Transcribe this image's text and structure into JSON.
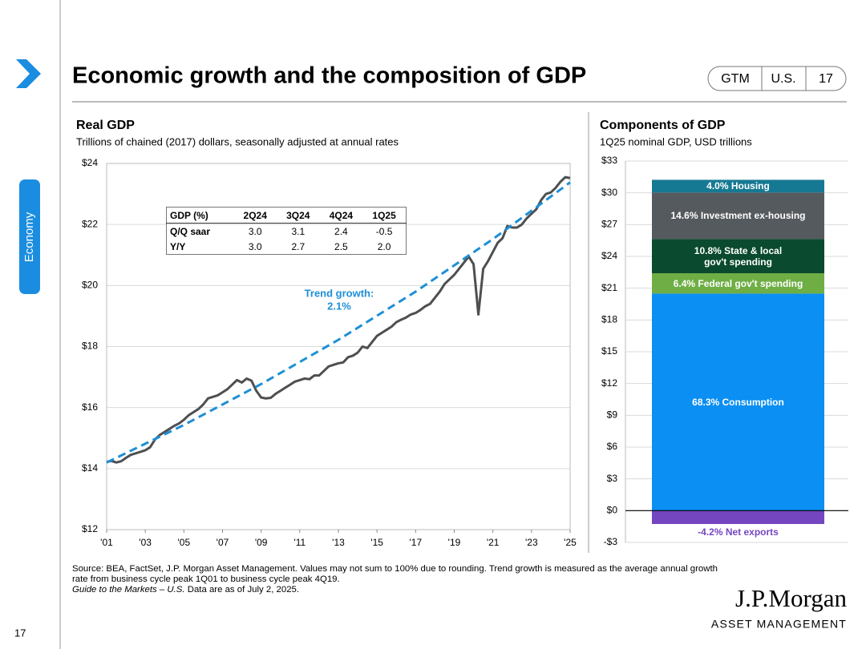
{
  "header": {
    "title": "Economic growth and the composition of GDP",
    "tags": [
      "GTM",
      "U.S.",
      "17"
    ]
  },
  "sidebar": {
    "section": "Economy",
    "page": "17"
  },
  "chart_data": [
    {
      "type": "line",
      "title": "Real GDP",
      "subtitle": "Trillions of chained (2017) dollars, seasonally adjusted at annual rates",
      "x": [
        2001,
        2001.25,
        2001.5,
        2001.75,
        2002,
        2002.25,
        2002.5,
        2002.75,
        2003,
        2003.25,
        2003.5,
        2003.75,
        2004,
        2004.25,
        2004.5,
        2004.75,
        2005,
        2005.25,
        2005.5,
        2005.75,
        2006,
        2006.25,
        2006.5,
        2006.75,
        2007,
        2007.25,
        2007.5,
        2007.75,
        2008,
        2008.25,
        2008.5,
        2008.75,
        2009,
        2009.25,
        2009.5,
        2009.75,
        2010,
        2010.25,
        2010.5,
        2010.75,
        2011,
        2011.25,
        2011.5,
        2011.75,
        2012,
        2012.25,
        2012.5,
        2012.75,
        2013,
        2013.25,
        2013.5,
        2013.75,
        2014,
        2014.25,
        2014.5,
        2014.75,
        2015,
        2015.25,
        2015.5,
        2015.75,
        2016,
        2016.25,
        2016.5,
        2016.75,
        2017,
        2017.25,
        2017.5,
        2017.75,
        2018,
        2018.25,
        2018.5,
        2018.75,
        2019,
        2019.25,
        2019.5,
        2019.75,
        2020,
        2020.25,
        2020.5,
        2020.75,
        2021,
        2021.25,
        2021.5,
        2021.75,
        2022,
        2022.25,
        2022.5,
        2022.75,
        2023,
        2023.25,
        2023.5,
        2023.75,
        2024,
        2024.25,
        2024.5,
        2024.75,
        2025
      ],
      "series": [
        {
          "color": "#4d4f51",
          "values": [
            14.22,
            14.25,
            14.2,
            14.24,
            14.35,
            14.45,
            14.5,
            14.55,
            14.6,
            14.7,
            14.95,
            15.1,
            15.2,
            15.3,
            15.4,
            15.48,
            15.6,
            15.75,
            15.85,
            15.95,
            16.1,
            16.3,
            16.35,
            16.4,
            16.5,
            16.6,
            16.75,
            16.9,
            16.82,
            16.95,
            16.88,
            16.55,
            16.33,
            16.3,
            16.32,
            16.45,
            16.55,
            16.65,
            16.75,
            16.85,
            16.9,
            16.95,
            16.93,
            17.05,
            17.05,
            17.2,
            17.35,
            17.4,
            17.45,
            17.48,
            17.65,
            17.7,
            17.8,
            18.0,
            17.95,
            18.15,
            18.35,
            18.45,
            18.55,
            18.65,
            18.8,
            18.88,
            18.95,
            19.05,
            19.1,
            19.2,
            19.32,
            19.4,
            19.6,
            19.8,
            20.05,
            20.2,
            20.35,
            20.55,
            20.75,
            20.95,
            20.7,
            19.05,
            20.55,
            20.8,
            21.1,
            21.4,
            21.55,
            21.95,
            21.9,
            21.9,
            22.0,
            22.2,
            22.35,
            22.5,
            22.8,
            23.0,
            23.05,
            23.2,
            23.4,
            23.55,
            23.52
          ]
        },
        {
          "color": "#1e8fd6",
          "dashed": true,
          "x": [
            2001,
            2005,
            2009,
            2013,
            2017,
            2021,
            2025
          ],
          "values": [
            14.2,
            15.43,
            16.77,
            18.22,
            19.8,
            21.52,
            23.38
          ]
        }
      ],
      "annotation": [
        "Trend growth:",
        "2.1%"
      ],
      "annotation_color": "#1e8fd6",
      "xlim": [
        2001,
        2025
      ],
      "xticks": [
        {
          "value": 2001,
          "label": "'01"
        },
        {
          "value": 2003,
          "label": "'03"
        },
        {
          "value": 2005,
          "label": "'05"
        },
        {
          "value": 2007,
          "label": "'07"
        },
        {
          "value": 2009,
          "label": "'09"
        },
        {
          "value": 2011,
          "label": "'11"
        },
        {
          "value": 2013,
          "label": "'13"
        },
        {
          "value": 2015,
          "label": "'15"
        },
        {
          "value": 2017,
          "label": "'17"
        },
        {
          "value": 2019,
          "label": "'19"
        },
        {
          "value": 2021,
          "label": "'21"
        },
        {
          "value": 2023,
          "label": "'23"
        },
        {
          "value": 2025,
          "label": "'25"
        }
      ],
      "ylim": [
        12,
        24
      ],
      "yticks": [
        {
          "value": 12,
          "label": "$12"
        },
        {
          "value": 14,
          "label": "$14"
        },
        {
          "value": 16,
          "label": "$16"
        },
        {
          "value": 18,
          "label": "$18"
        },
        {
          "value": 20,
          "label": "$20"
        },
        {
          "value": 22,
          "label": "$22"
        },
        {
          "value": 24,
          "label": "$24"
        }
      ],
      "grid": true,
      "table": {
        "header": [
          "GDP (%)",
          "2Q24",
          "3Q24",
          "4Q24",
          "1Q25"
        ],
        "rows": [
          [
            "Q/Q saar",
            "3.0",
            "3.1",
            "2.4",
            "-0.5"
          ],
          [
            "Y/Y",
            "3.0",
            "2.7",
            "2.5",
            "2.0"
          ]
        ]
      }
    },
    {
      "type": "stacked_bar",
      "title": "Components of GDP",
      "subtitle": "1Q25 nominal GDP, USD trillions",
      "series": [
        {
          "name": "68.3% Consumption",
          "color": "#0b8ff2",
          "values": [
            20.49
          ]
        },
        {
          "name": "6.4% Federal gov't spending",
          "color": "#6fae45",
          "values": [
            1.92
          ]
        },
        {
          "name": "10.8% State & local gov't spending",
          "color": "#0a4a2e",
          "values": [
            3.24
          ]
        },
        {
          "name": "14.6% Investment ex-housing",
          "color": "#555a5e",
          "values": [
            4.38
          ]
        },
        {
          "name": "4.0% Housing",
          "color": "#167993",
          "values": [
            1.2
          ]
        },
        {
          "name": "-4.2% Net exports",
          "color": "#7446bf",
          "values": [
            -1.26
          ]
        }
      ],
      "ylim": [
        -3,
        33
      ],
      "yticks": [
        {
          "value": -3,
          "label": "-$3"
        },
        {
          "value": 0,
          "label": "$0"
        },
        {
          "value": 3,
          "label": "$3"
        },
        {
          "value": 6,
          "label": "$6"
        },
        {
          "value": 9,
          "label": "$9"
        },
        {
          "value": 12,
          "label": "$12"
        },
        {
          "value": 15,
          "label": "$15"
        },
        {
          "value": 18,
          "label": "$18"
        },
        {
          "value": 21,
          "label": "$21"
        },
        {
          "value": 24,
          "label": "$24"
        },
        {
          "value": 27,
          "label": "$27"
        },
        {
          "value": 30,
          "label": "$30"
        },
        {
          "value": 33,
          "label": "$33"
        }
      ],
      "grid": true
    }
  ],
  "footer": {
    "source": "Source: BEA, FactSet, J.P. Morgan Asset Management. Values may not sum to 100% due to rounding. Trend growth is measured as the average annual growth rate from business cycle peak 1Q01 to business cycle peak 4Q19.",
    "note_italic": "Guide to the Markets – U.S.",
    "note": "Data are as of July 2, 2025."
  },
  "logo": {
    "name": "J.P.Morgan",
    "subtitle": "ASSET MANAGEMENT"
  }
}
